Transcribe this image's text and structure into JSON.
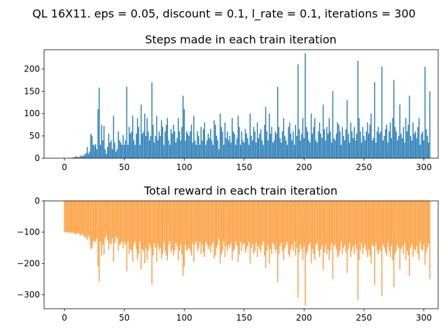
{
  "figure": {
    "suptitle": "QL 16X11. eps = 0.05, discount = 0.1, l_rate = 0.1, iterations = 300"
  },
  "chart_data": [
    {
      "type": "bar",
      "title": "Steps made in each train iteration",
      "xlabel": "",
      "ylabel": "",
      "xlim": [
        -17,
        312
      ],
      "ylim": [
        0,
        243
      ],
      "xticks": [
        0,
        50,
        100,
        150,
        200,
        250,
        300
      ],
      "yticks": [
        0,
        50,
        100,
        150,
        200
      ],
      "color": "#1f77b4",
      "grid": false,
      "x_start": 0,
      "values": [
        0,
        0,
        0,
        0,
        0,
        0,
        1,
        2,
        2,
        3,
        4,
        3,
        2,
        5,
        6,
        4,
        7,
        8,
        12,
        25,
        10,
        15,
        55,
        50,
        30,
        28,
        32,
        20,
        110,
        158,
        30,
        75,
        40,
        72,
        20,
        10,
        25,
        55,
        35,
        40,
        20,
        95,
        35,
        15,
        20,
        60,
        40,
        35,
        30,
        52,
        30,
        40,
        160,
        30,
        70,
        55,
        60,
        95,
        40,
        30,
        55,
        90,
        70,
        30,
        120,
        55,
        60,
        100,
        50,
        90,
        60,
        40,
        50,
        170,
        75,
        35,
        50,
        95,
        40,
        60,
        50,
        85,
        70,
        30,
        60,
        75,
        90,
        40,
        30,
        65,
        55,
        75,
        60,
        35,
        45,
        90,
        60,
        40,
        70,
        140,
        110,
        40,
        60,
        55,
        50,
        60,
        75,
        35,
        95,
        40,
        30,
        60,
        50,
        30,
        70,
        40,
        65,
        80,
        30,
        40,
        55,
        45,
        65,
        40,
        30,
        85,
        75,
        50,
        40,
        20,
        100,
        70,
        60,
        30,
        80,
        45,
        60,
        40,
        50,
        35,
        90,
        60,
        55,
        30,
        45,
        95,
        70,
        30,
        60,
        40,
        35,
        65,
        55,
        45,
        30,
        100,
        50,
        40,
        70,
        60,
        35,
        80,
        45,
        55,
        65,
        40,
        30,
        75,
        115,
        60,
        40,
        100,
        55,
        70,
        35,
        40,
        60,
        55,
        160,
        70,
        45,
        35,
        60,
        90,
        50,
        40,
        30,
        70,
        80,
        55,
        40,
        60,
        30,
        75,
        50,
        210,
        65,
        40,
        55,
        90,
        45,
        235,
        70,
        60,
        40,
        35,
        100,
        55,
        70,
        90,
        40,
        35,
        60,
        80,
        55,
        45,
        120,
        65,
        40,
        70,
        55,
        90,
        60,
        35,
        150,
        45,
        40,
        55,
        80,
        75,
        60,
        30,
        70,
        50,
        40,
        65,
        130,
        55,
        35,
        80,
        60,
        45,
        70,
        40,
        55,
        218,
        90,
        60,
        35,
        70,
        50,
        40,
        60,
        80,
        55,
        75,
        100,
        40,
        45,
        170,
        35,
        60,
        70,
        55,
        60,
        205,
        40,
        50,
        65,
        75,
        35,
        60,
        80,
        45,
        90,
        175,
        70,
        60,
        40,
        50,
        120,
        55,
        45,
        70,
        35,
        90,
        60,
        75,
        140,
        50,
        40,
        80,
        55,
        60,
        45,
        70,
        90,
        30,
        55,
        60,
        40,
        205,
        65,
        50,
        35,
        150
      ]
    },
    {
      "type": "bar",
      "title": "Total reward in each train iteration",
      "xlabel": "",
      "ylabel": "",
      "xlim": [
        -17,
        312
      ],
      "ylim": [
        -345,
        0
      ],
      "xticks": [
        0,
        50,
        100,
        150,
        200,
        250,
        300
      ],
      "yticks": [
        0,
        -100,
        -200,
        -300
      ],
      "color": "#ff9933",
      "grid": false,
      "x_start": 0,
      "values": [
        -100,
        -100,
        -100,
        -101,
        -102,
        -103,
        -100,
        -102,
        -104,
        -105,
        -106,
        -104,
        -103,
        -110,
        -108,
        -106,
        -112,
        -115,
        -118,
        -125,
        -110,
        -120,
        -155,
        -150,
        -130,
        -128,
        -132,
        -120,
        -210,
        -258,
        -130,
        -175,
        -140,
        -172,
        -120,
        -110,
        -125,
        -155,
        -135,
        -140,
        -120,
        -195,
        -135,
        -115,
        -120,
        -160,
        -140,
        -135,
        -130,
        -152,
        -130,
        -140,
        -225,
        -130,
        -170,
        -155,
        -160,
        -195,
        -140,
        -130,
        -155,
        -190,
        -170,
        -130,
        -220,
        -155,
        -160,
        -200,
        -150,
        -190,
        -160,
        -140,
        -150,
        -268,
        -175,
        -135,
        -150,
        -195,
        -140,
        -160,
        -150,
        -185,
        -170,
        -130,
        -160,
        -175,
        -190,
        -140,
        -130,
        -165,
        -155,
        -175,
        -160,
        -135,
        -145,
        -190,
        -160,
        -140,
        -170,
        -240,
        -210,
        -140,
        -160,
        -155,
        -150,
        -160,
        -175,
        -135,
        -195,
        -140,
        -130,
        -160,
        -150,
        -130,
        -170,
        -140,
        -165,
        -180,
        -130,
        -140,
        -155,
        -145,
        -165,
        -140,
        -130,
        -185,
        -175,
        -150,
        -140,
        -120,
        -200,
        -170,
        -160,
        -130,
        -180,
        -145,
        -160,
        -140,
        -150,
        -135,
        -190,
        -160,
        -155,
        -130,
        -145,
        -195,
        -170,
        -130,
        -160,
        -140,
        -135,
        -165,
        -155,
        -145,
        -130,
        -200,
        -150,
        -140,
        -170,
        -160,
        -135,
        -180,
        -145,
        -155,
        -165,
        -140,
        -130,
        -175,
        -215,
        -160,
        -140,
        -200,
        -155,
        -170,
        -135,
        -140,
        -160,
        -155,
        -260,
        -170,
        -145,
        -135,
        -160,
        -190,
        -150,
        -140,
        -130,
        -170,
        -180,
        -155,
        -140,
        -160,
        -130,
        -175,
        -150,
        -310,
        -165,
        -140,
        -155,
        -190,
        -145,
        -335,
        -170,
        -160,
        -140,
        -135,
        -200,
        -155,
        -170,
        -190,
        -140,
        -135,
        -160,
        -180,
        -155,
        -145,
        -220,
        -165,
        -140,
        -170,
        -155,
        -190,
        -160,
        -135,
        -250,
        -145,
        -140,
        -155,
        -180,
        -175,
        -160,
        -130,
        -170,
        -150,
        -140,
        -165,
        -230,
        -155,
        -135,
        -180,
        -160,
        -145,
        -170,
        -140,
        -155,
        -318,
        -190,
        -160,
        -135,
        -170,
        -150,
        -140,
        -160,
        -180,
        -155,
        -175,
        -200,
        -140,
        -145,
        -270,
        -135,
        -160,
        -170,
        -155,
        -160,
        -305,
        -140,
        -150,
        -165,
        -175,
        -135,
        -160,
        -180,
        -145,
        -190,
        -275,
        -170,
        -160,
        -140,
        -150,
        -220,
        -155,
        -145,
        -170,
        -135,
        -190,
        -160,
        -175,
        -240,
        -150,
        -140,
        -180,
        -155,
        -160,
        -145,
        -170,
        -190,
        -130,
        -155,
        -160,
        -140,
        -205,
        -165,
        -150,
        -135,
        -250
      ]
    }
  ]
}
